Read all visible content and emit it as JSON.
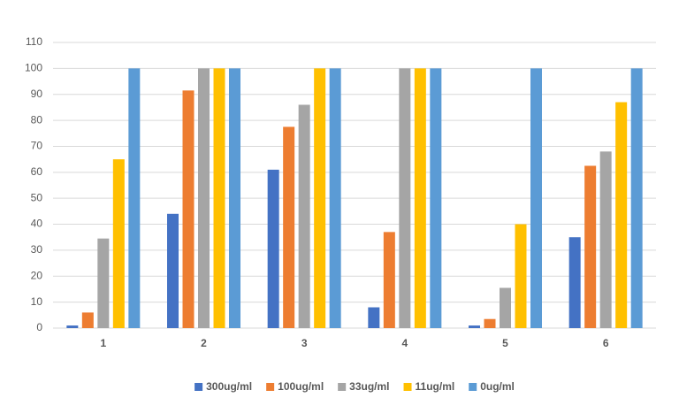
{
  "chart_data": {
    "type": "bar",
    "categories": [
      "1",
      "2",
      "3",
      "4",
      "5",
      "6"
    ],
    "series": [
      {
        "name": "300ug/ml",
        "color": "#4472c4",
        "values": [
          1,
          44,
          61,
          8,
          1,
          35
        ]
      },
      {
        "name": "100ug/ml",
        "color": "#ed7d31",
        "values": [
          6,
          91.5,
          77.5,
          37,
          3.5,
          62.5
        ]
      },
      {
        "name": "33ug/ml",
        "color": "#a5a5a5",
        "values": [
          34.5,
          100,
          86,
          100,
          15.5,
          68
        ]
      },
      {
        "name": "11ug/ml",
        "color": "#ffc000",
        "values": [
          65,
          100,
          100,
          100,
          40,
          87
        ]
      },
      {
        "name": "0ug/ml",
        "color": "#5b9bd5",
        "values": [
          100,
          100,
          100,
          100,
          100,
          100
        ]
      }
    ],
    "ylim": [
      0,
      110
    ],
    "yticks": [
      0,
      10,
      20,
      30,
      40,
      50,
      60,
      70,
      80,
      90,
      100,
      110
    ],
    "grid": true,
    "legend": "bottom"
  }
}
